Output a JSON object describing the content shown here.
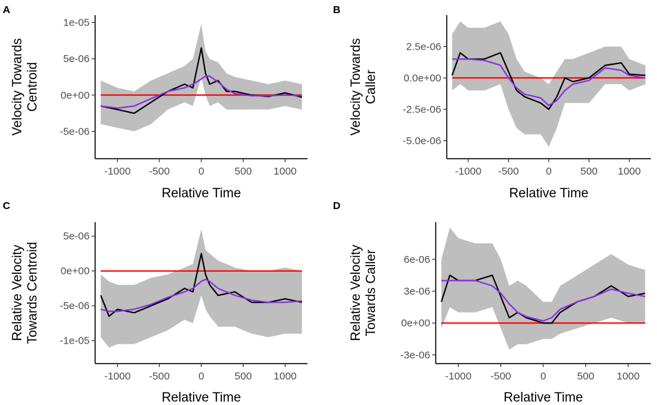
{
  "figure": {
    "title": ""
  },
  "colors": {
    "band": "#bebebe",
    "observed": "#000000",
    "smooth": "#8a2be2",
    "reference": "#ff0000"
  },
  "chart_data": [
    {
      "panel": "A",
      "type": "line",
      "xlabel": "Relative Time",
      "ylabel": [
        "Velocity Towards",
        "Centroid"
      ],
      "xlim": [
        -1250,
        1250
      ],
      "ylim": [
        -8e-06,
        1.1e-05
      ],
      "xticks": [
        -1000,
        -500,
        0,
        500,
        1000
      ],
      "xtick_labels": [
        "-1000",
        "-500",
        "0",
        "500",
        "1000"
      ],
      "yticks": [
        -5e-06,
        0,
        5e-06,
        1e-05
      ],
      "ytick_labels": [
        "-5e-06",
        "0e+00",
        "5e-06",
        "1e-05"
      ],
      "reference_y": 0,
      "x": [
        -1200,
        -1000,
        -800,
        -600,
        -400,
        -200,
        -100,
        0,
        50,
        100,
        200,
        300,
        400,
        600,
        800,
        1000,
        1200
      ],
      "series": [
        {
          "name": "observed",
          "values": [
            -1.5e-06,
            -2e-06,
            -2.5e-06,
            -1e-06,
            5e-07,
            1.5e-06,
            1e-06,
            6.5e-06,
            3e-06,
            1.5e-06,
            2e-06,
            5e-07,
            5e-07,
            0,
            -2e-07,
            3e-07,
            -3e-07
          ]
        },
        {
          "name": "smooth",
          "values": [
            -1.5e-06,
            -1.8e-06,
            -1.5e-06,
            -5e-07,
            5e-07,
            1e-06,
            1.5e-06,
            2.2e-06,
            2.6e-06,
            2.6e-06,
            1.8e-06,
            8e-07,
            2e-07,
            -1e-07,
            -1e-07,
            0,
            -1e-07
          ]
        },
        {
          "name": "upper",
          "values": [
            2e-06,
            1e-06,
            5e-07,
            2e-06,
            3e-06,
            4e-06,
            5e-06,
            9.8e-06,
            6e-06,
            5e-06,
            4.5e-06,
            3e-06,
            2.5e-06,
            2e-06,
            1.5e-06,
            2e-06,
            1.5e-06
          ]
        },
        {
          "name": "lower",
          "values": [
            -4e-06,
            -4.5e-06,
            -5e-06,
            -4e-06,
            -2e-06,
            -1e-06,
            -1.5e-06,
            2.5e-06,
            0,
            -1.5e-06,
            -1e-06,
            -2e-06,
            -2e-06,
            -2e-06,
            -2e-06,
            -1.5e-06,
            -2e-06
          ]
        }
      ]
    },
    {
      "panel": "B",
      "type": "line",
      "xlabel": "Relative Time",
      "ylabel": [
        "Velocity Towards",
        "Caller"
      ],
      "xlim": [
        -1250,
        1250
      ],
      "ylim": [
        -6e-06,
        5e-06
      ],
      "xticks": [
        -1000,
        -500,
        0,
        500,
        1000
      ],
      "xtick_labels": [
        "-1000",
        "-500",
        "0",
        "500",
        "1000"
      ],
      "yticks": [
        -5e-06,
        -2.5e-06,
        0,
        2.5e-06
      ],
      "ytick_labels": [
        "-5.0e-06",
        "-2.5e-06",
        "0.0e+00",
        "2.5e-06"
      ],
      "reference_y": 0,
      "x": [
        -1200,
        -1100,
        -1000,
        -800,
        -600,
        -500,
        -400,
        -300,
        -100,
        0,
        100,
        200,
        300,
        500,
        700,
        900,
        1000,
        1200
      ],
      "series": [
        {
          "name": "observed",
          "values": [
            2e-07,
            2e-06,
            1.5e-06,
            1.5e-06,
            2e-06,
            5e-07,
            -1e-06,
            -1.5e-06,
            -2e-06,
            -2.5e-06,
            -1.5e-06,
            0,
            -3e-07,
            0,
            1e-06,
            1.2e-06,
            3e-07,
            2e-07
          ]
        },
        {
          "name": "smooth",
          "values": [
            1.5e-06,
            1.5e-06,
            1.5e-06,
            1.4e-06,
            1e-06,
            0,
            -8e-07,
            -1.3e-06,
            -1.6e-06,
            -2.2e-06,
            -1.8e-06,
            -1e-06,
            -5e-07,
            -2e-07,
            8e-07,
            6e-07,
            2e-07,
            0
          ]
        },
        {
          "name": "upper",
          "values": [
            3.5e-06,
            4.5e-06,
            4e-06,
            4e-06,
            4.5e-06,
            3.5e-06,
            1.5e-06,
            5e-07,
            0,
            -5e-07,
            5e-07,
            1.5e-06,
            1.5e-06,
            2e-06,
            2.5e-06,
            2.5e-06,
            1.5e-06,
            1e-06
          ]
        },
        {
          "name": "lower",
          "values": [
            -1e-06,
            -5e-07,
            -1e-06,
            -1e-06,
            -5e-07,
            -2.5e-06,
            -4e-06,
            -4.5e-06,
            -4.5e-06,
            -5.5e-06,
            -4e-06,
            -2e-06,
            -2e-06,
            -2e-06,
            -5e-07,
            -5e-07,
            -1e-06,
            -5e-07
          ]
        }
      ]
    },
    {
      "panel": "C",
      "type": "line",
      "xlabel": "Relative Time",
      "ylabel": [
        "Relative Velocity",
        "Towards Centroid"
      ],
      "xlim": [
        -1250,
        1250
      ],
      "ylim": [
        -1.25e-05,
        7e-06
      ],
      "xticks": [
        -1000,
        -500,
        0,
        500,
        1000
      ],
      "xtick_labels": [
        "-1000",
        "-500",
        "0",
        "500",
        "1000"
      ],
      "yticks": [
        -1e-05,
        -5e-06,
        0,
        5e-06
      ],
      "ytick_labels": [
        "-1e-05",
        "-5e-06",
        "0e+00",
        "5e-06"
      ],
      "reference_y": 0,
      "x": [
        -1200,
        -1100,
        -1000,
        -800,
        -600,
        -400,
        -200,
        -100,
        0,
        50,
        100,
        200,
        400,
        600,
        800,
        1000,
        1200
      ],
      "series": [
        {
          "name": "observed",
          "values": [
            -3.5e-06,
            -6.5e-06,
            -5.5e-06,
            -6e-06,
            -5e-06,
            -4e-06,
            -2.5e-06,
            -3e-06,
            2.5e-06,
            -5e-07,
            -2e-06,
            -3.5e-06,
            -3e-06,
            -4.5e-06,
            -4.5e-06,
            -4e-06,
            -4.5e-06
          ]
        },
        {
          "name": "smooth",
          "values": [
            -5.5e-06,
            -5.8e-06,
            -5.8e-06,
            -5.5e-06,
            -4.8e-06,
            -3.8e-06,
            -3e-06,
            -2.5e-06,
            -1.5e-06,
            -1.2e-06,
            -1.5e-06,
            -2.5e-06,
            -3.5e-06,
            -4.2e-06,
            -4.5e-06,
            -4.5e-06,
            -4.3e-06
          ]
        },
        {
          "name": "upper",
          "values": [
            -5e-07,
            -1.5e-06,
            -2e-06,
            -2e-06,
            -1e-06,
            -5e-07,
            5e-07,
            1e-06,
            6e-06,
            3e-06,
            2.5e-06,
            1.5e-06,
            5e-07,
            0,
            0,
            5e-07,
            0
          ]
        },
        {
          "name": "lower",
          "values": [
            -9.5e-06,
            -1.1e-05,
            -1.05e-05,
            -1.05e-05,
            -9.5e-06,
            -8.5e-06,
            -7e-06,
            -7.5e-06,
            -3.5e-06,
            -5.5e-06,
            -6.5e-06,
            -8e-06,
            -8e-06,
            -9e-06,
            -9.5e-06,
            -9e-06,
            -9e-06
          ]
        }
      ]
    },
    {
      "panel": "D",
      "type": "line",
      "xlabel": "Relative Time",
      "ylabel": [
        "Relative Velocity",
        "Towards Caller"
      ],
      "xlim": [
        -1250,
        1250
      ],
      "ylim": [
        -3.3e-06,
        9.5e-06
      ],
      "xticks": [
        -1000,
        -500,
        0,
        500,
        1000
      ],
      "xtick_labels": [
        "-1000",
        "-500",
        "0",
        "500",
        "1000"
      ],
      "yticks": [
        -3e-06,
        0,
        3e-06,
        6e-06
      ],
      "ytick_labels": [
        "-3e-06",
        "0e+00",
        "3e-06",
        "6e-06"
      ],
      "reference_y": 0,
      "x": [
        -1200,
        -1100,
        -1000,
        -800,
        -600,
        -500,
        -400,
        -300,
        -200,
        0,
        100,
        200,
        400,
        600,
        800,
        1000,
        1200
      ],
      "series": [
        {
          "name": "observed",
          "values": [
            2e-06,
            4.5e-06,
            4e-06,
            4e-06,
            4.5e-06,
            2.5e-06,
            5e-07,
            1e-06,
            5e-07,
            0,
            0,
            1e-06,
            2e-06,
            2.5e-06,
            3.5e-06,
            2.5e-06,
            2.8e-06
          ]
        },
        {
          "name": "smooth",
          "values": [
            4e-06,
            4e-06,
            4e-06,
            4e-06,
            3.5e-06,
            2.8e-06,
            1.8e-06,
            1e-06,
            6e-07,
            2e-07,
            5e-07,
            1.3e-06,
            2e-06,
            2.5e-06,
            3.2e-06,
            2.8e-06,
            2.5e-06
          ]
        },
        {
          "name": "upper",
          "values": [
            6e-06,
            9e-06,
            8e-06,
            7.5e-06,
            7.5e-06,
            6e-06,
            3.5e-06,
            4e-06,
            3.5e-06,
            2e-06,
            2e-06,
            3.5e-06,
            4.5e-06,
            5.5e-06,
            6.5e-06,
            5.5e-06,
            5e-06
          ]
        },
        {
          "name": "lower",
          "values": [
            -5e-07,
            1.5e-06,
            1e-06,
            1e-06,
            1.5e-06,
            -5e-07,
            -2.5e-06,
            -2e-06,
            -2e-06,
            -1.5e-06,
            -1.5e-06,
            -1e-06,
            -5e-07,
            0,
            5e-07,
            0,
            0
          ]
        }
      ]
    }
  ]
}
